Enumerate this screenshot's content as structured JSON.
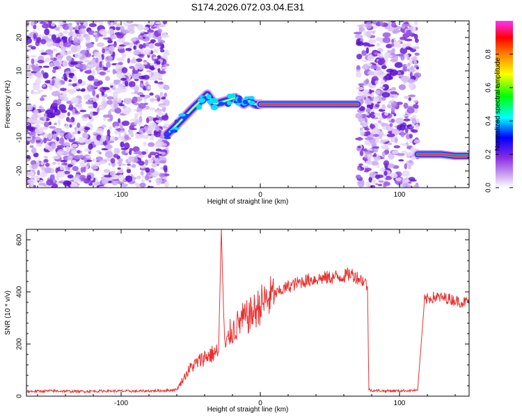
{
  "title": "S174.2026.072.03.04.E31",
  "colors": {
    "snr_line": "#e83030",
    "ridge_core": "#e84040",
    "frame": "#000000",
    "colormap_stops": [
      "#ffffff",
      "#8a2be2",
      "#0000ff",
      "#00ffff",
      "#00ff00",
      "#ffff00",
      "#ff8000",
      "#ff0000",
      "#ff00ff"
    ]
  },
  "chart_data": [
    {
      "type": "heatmap",
      "title": "S174.2026.072.03.04.E31",
      "xlabel": "Height of straight line (km)",
      "ylabel": "Frequency (Hz)",
      "xlim": [
        -168,
        150
      ],
      "ylim": [
        -25,
        25
      ],
      "x_ticks": [
        -100,
        0,
        100
      ],
      "x_tick_labels": [
        "-100",
        "0",
        "100"
      ],
      "y_ticks": [
        -20,
        -10,
        0,
        10,
        20
      ],
      "y_tick_labels": [
        "-20",
        "-10",
        "0",
        "10",
        "20"
      ],
      "colorbar": {
        "label": "Normalized spectral amplitude",
        "range": [
          0,
          1
        ],
        "ticks": [
          0,
          0.2,
          0.4,
          0.6,
          0.8
        ],
        "tick_labels": [
          "0.0",
          "0.2",
          "0.4",
          "0.6",
          "0.8"
        ]
      },
      "noise_regions_km": [
        [
          -168,
          -67
        ],
        [
          70,
          113
        ]
      ],
      "ridge_segments": [
        {
          "x": [
            -67,
            -62,
            -55,
            -48,
            -43,
            -38,
            -33,
            -25,
            -18,
            -12,
            -8,
            -4,
            0
          ],
          "y": [
            -9,
            -7,
            -4,
            -1,
            1,
            3,
            0,
            1,
            2,
            0,
            1,
            0,
            0
          ]
        },
        {
          "x": [
            0,
            15,
            30,
            45,
            60,
            70
          ],
          "y": [
            0,
            0,
            0,
            0,
            0,
            0
          ]
        },
        {
          "x": [
            113,
            120,
            130,
            140,
            150
          ],
          "y": [
            -15,
            -15,
            -15,
            -15.5,
            -15.5
          ]
        }
      ]
    },
    {
      "type": "line",
      "xlabel": "Height of straight line (km)",
      "ylabel": "SNR (10 * v/v)",
      "xlim": [
        -168,
        150
      ],
      "ylim": [
        0,
        640
      ],
      "x_ticks": [
        -100,
        0,
        100
      ],
      "x_tick_labels": [
        "-100",
        "0",
        "100"
      ],
      "y_ticks": [
        0,
        200,
        400,
        600
      ],
      "y_tick_labels": [
        "0",
        "200",
        "400",
        "600"
      ],
      "series": [
        {
          "x": [
            -168,
            -150,
            -130,
            -110,
            -90,
            -70,
            -60,
            -55,
            -50,
            -45,
            -40,
            -35,
            -30,
            -28,
            -26,
            -25,
            -22,
            -18,
            -14,
            -10,
            -5,
            0,
            5,
            10,
            20,
            30,
            40,
            50,
            60,
            65,
            70,
            75,
            77,
            78,
            80,
            90,
            100,
            113,
            118,
            125,
            135,
            145,
            150
          ],
          "y": [
            18,
            20,
            18,
            20,
            19,
            21,
            25,
            70,
            110,
            130,
            150,
            160,
            170,
            640,
            250,
            180,
            240,
            260,
            290,
            300,
            320,
            350,
            370,
            390,
            420,
            440,
            450,
            455,
            460,
            470,
            455,
            440,
            420,
            25,
            22,
            20,
            21,
            22,
            370,
            380,
            375,
            360,
            365
          ]
        }
      ]
    }
  ]
}
